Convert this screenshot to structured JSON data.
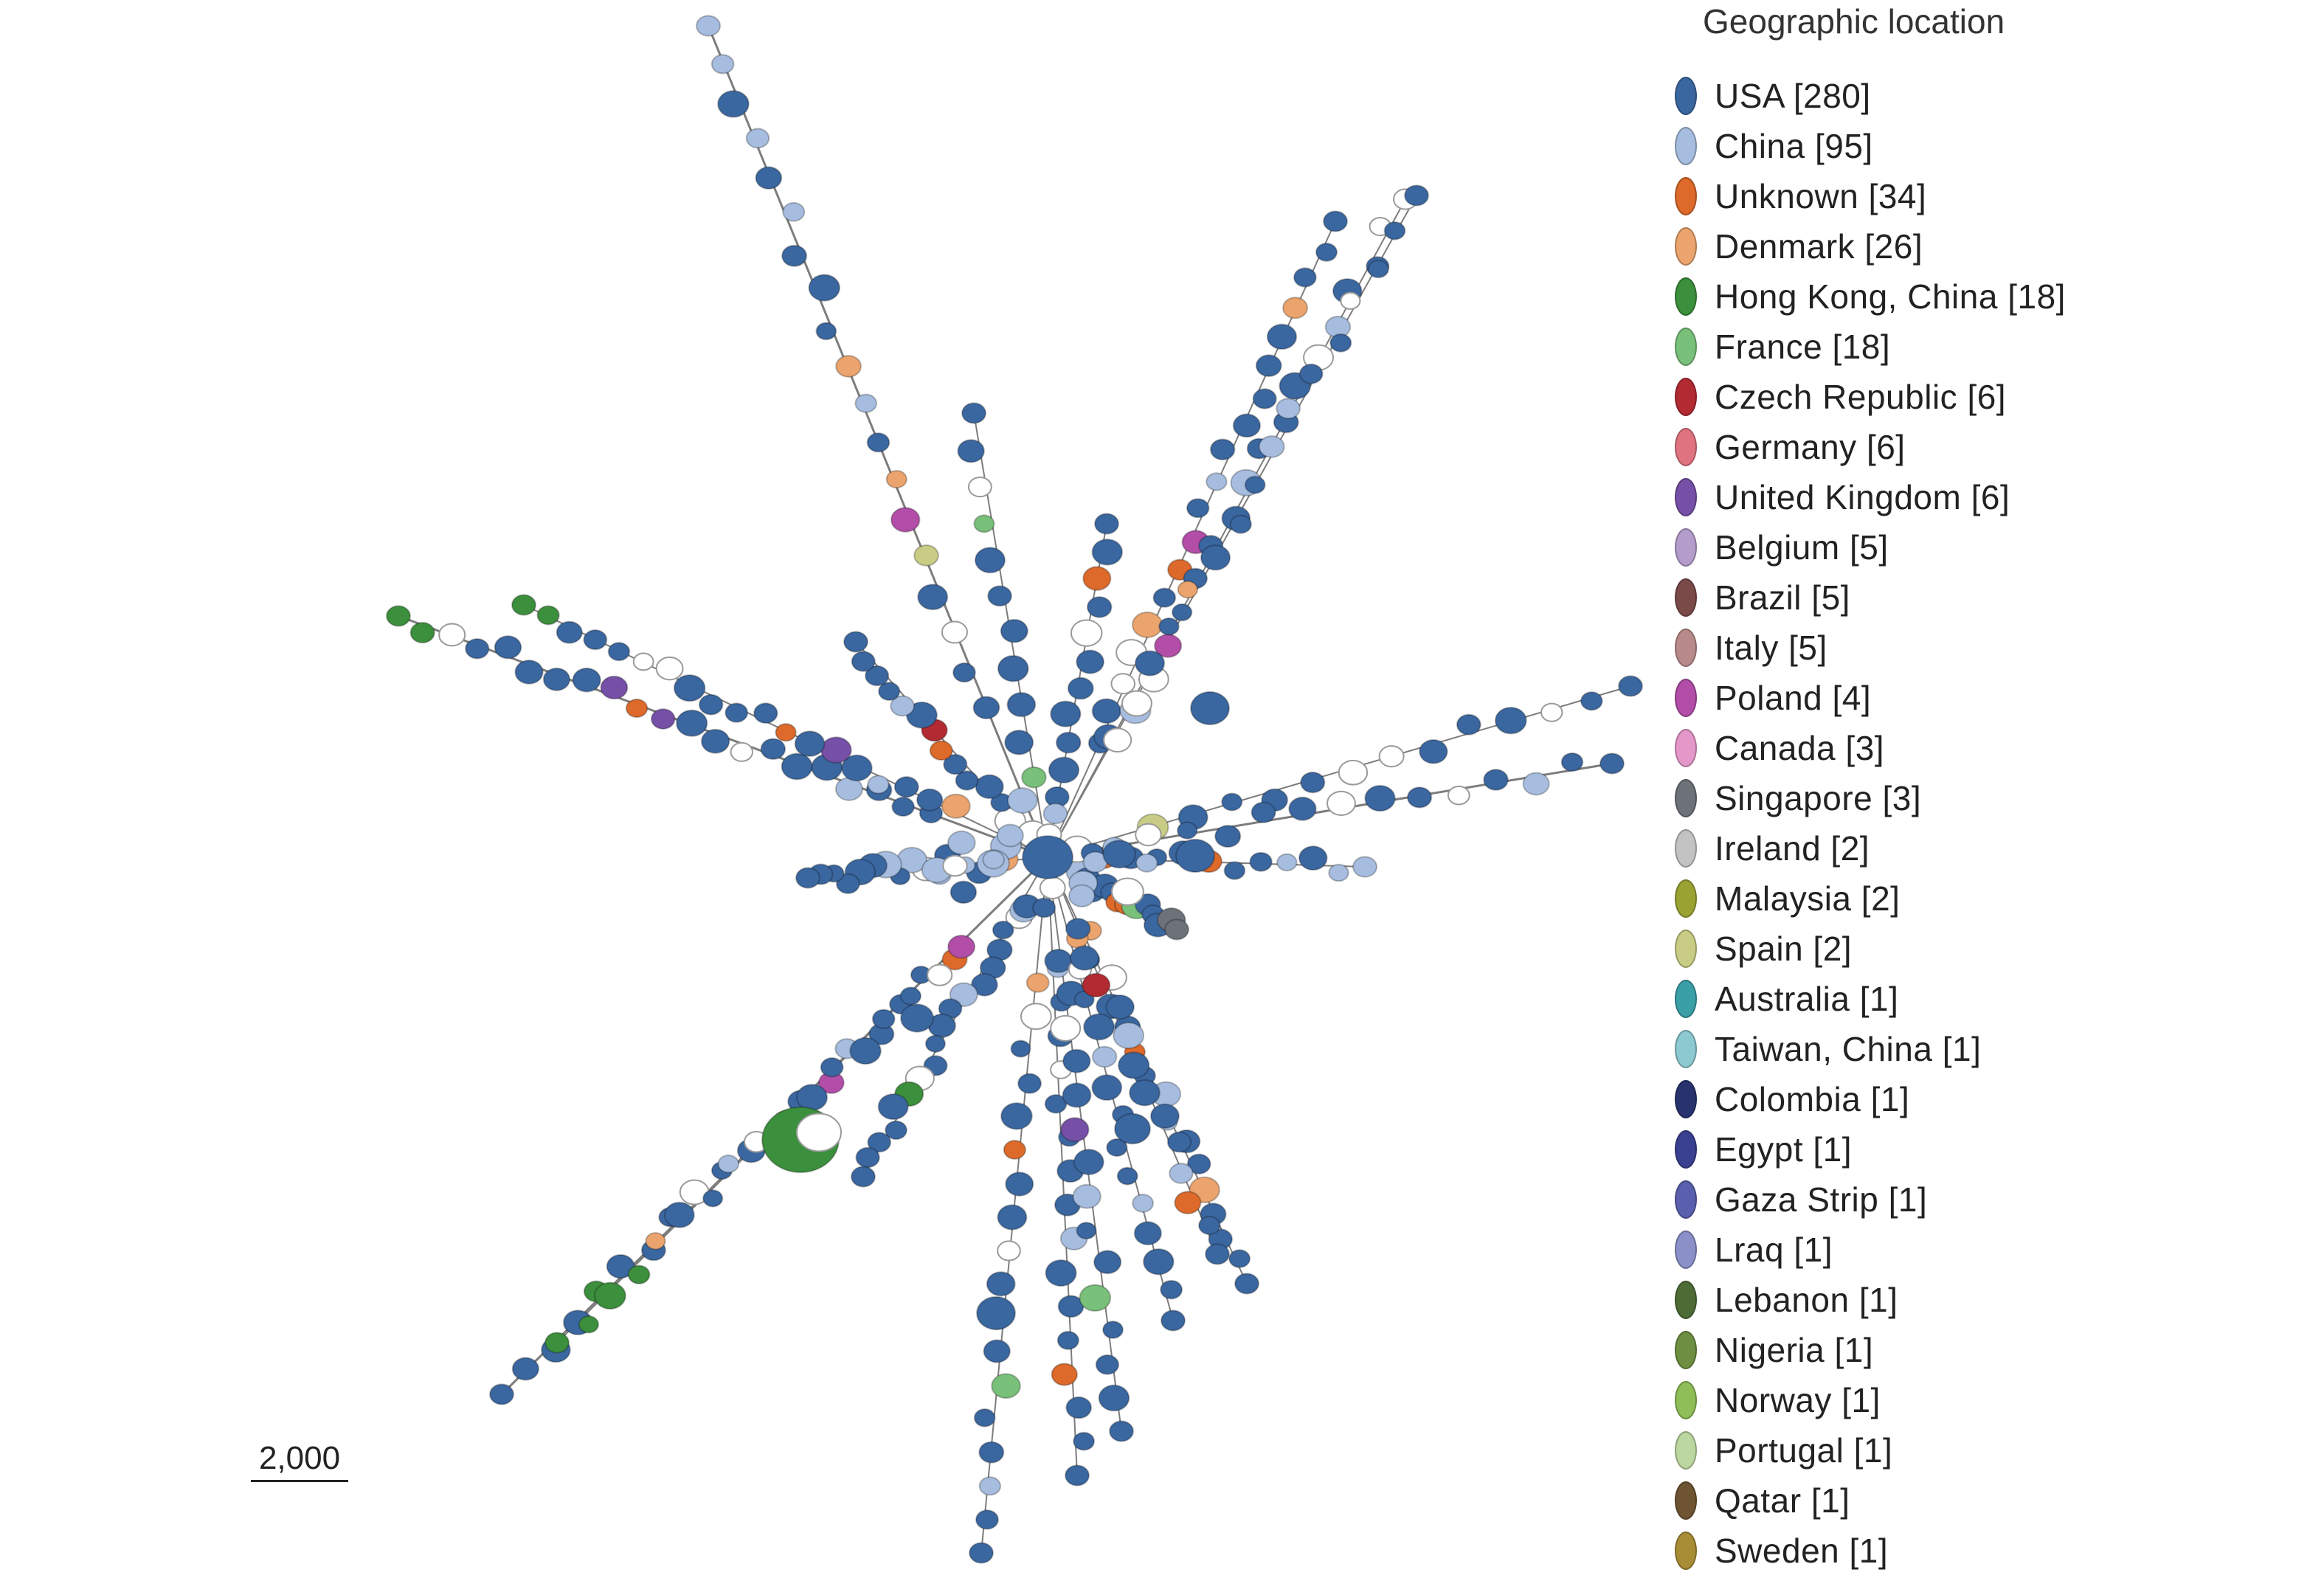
{
  "legend": {
    "title": "Geographic location",
    "items": [
      {
        "label": "USA [280]",
        "color": "#3b67a0"
      },
      {
        "label": "China [95]",
        "color": "#a6bddf"
      },
      {
        "label": "Unknown [34]",
        "color": "#dd6a2b"
      },
      {
        "label": "Denmark [26]",
        "color": "#eba46d"
      },
      {
        "label": "Hong Kong, China [18]",
        "color": "#3c8f3c"
      },
      {
        "label": "France [18]",
        "color": "#79c07a"
      },
      {
        "label": "Czech Republic [6]",
        "color": "#b22a32"
      },
      {
        "label": "Germany [6]",
        "color": "#e07380"
      },
      {
        "label": "United Kingdom [6]",
        "color": "#7650a6"
      },
      {
        "label": "Belgium [5]",
        "color": "#b49ccb"
      },
      {
        "label": "Brazil [5]",
        "color": "#7a4a48"
      },
      {
        "label": "Italy [5]",
        "color": "#b88b8a"
      },
      {
        "label": "Poland [4]",
        "color": "#b24ea8"
      },
      {
        "label": "Canada [3]",
        "color": "#e497c9"
      },
      {
        "label": "Singapore [3]",
        "color": "#6d7178"
      },
      {
        "label": "Ireland [2]",
        "color": "#c3c3c3"
      },
      {
        "label": "Malaysia [2]",
        "color": "#9aa332"
      },
      {
        "label": "Spain [2]",
        "color": "#c8cc84"
      },
      {
        "label": "Australia [1]",
        "color": "#3a9fa7"
      },
      {
        "label": "Taiwan, China [1]",
        "color": "#8cc9d0"
      },
      {
        "label": "Colombia [1]",
        "color": "#28336e"
      },
      {
        "label": "Egypt [1]",
        "color": "#3a4090"
      },
      {
        "label": "Gaza Strip [1]",
        "color": "#5a60ad"
      },
      {
        "label": "Lraq [1]",
        "color": "#8b90c9"
      },
      {
        "label": "Lebanon [1]",
        "color": "#4e6b36"
      },
      {
        "label": "Nigeria [1]",
        "color": "#6e8f42"
      },
      {
        "label": "Norway [1]",
        "color": "#8fbd57"
      },
      {
        "label": "Portugal [1]",
        "color": "#bcd7a0"
      },
      {
        "label": "Qatar [1]",
        "color": "#6e5432"
      },
      {
        "label": "Sweden [1]",
        "color": "#a88d36"
      }
    ]
  },
  "scale_bar": {
    "label": "2,000"
  }
}
